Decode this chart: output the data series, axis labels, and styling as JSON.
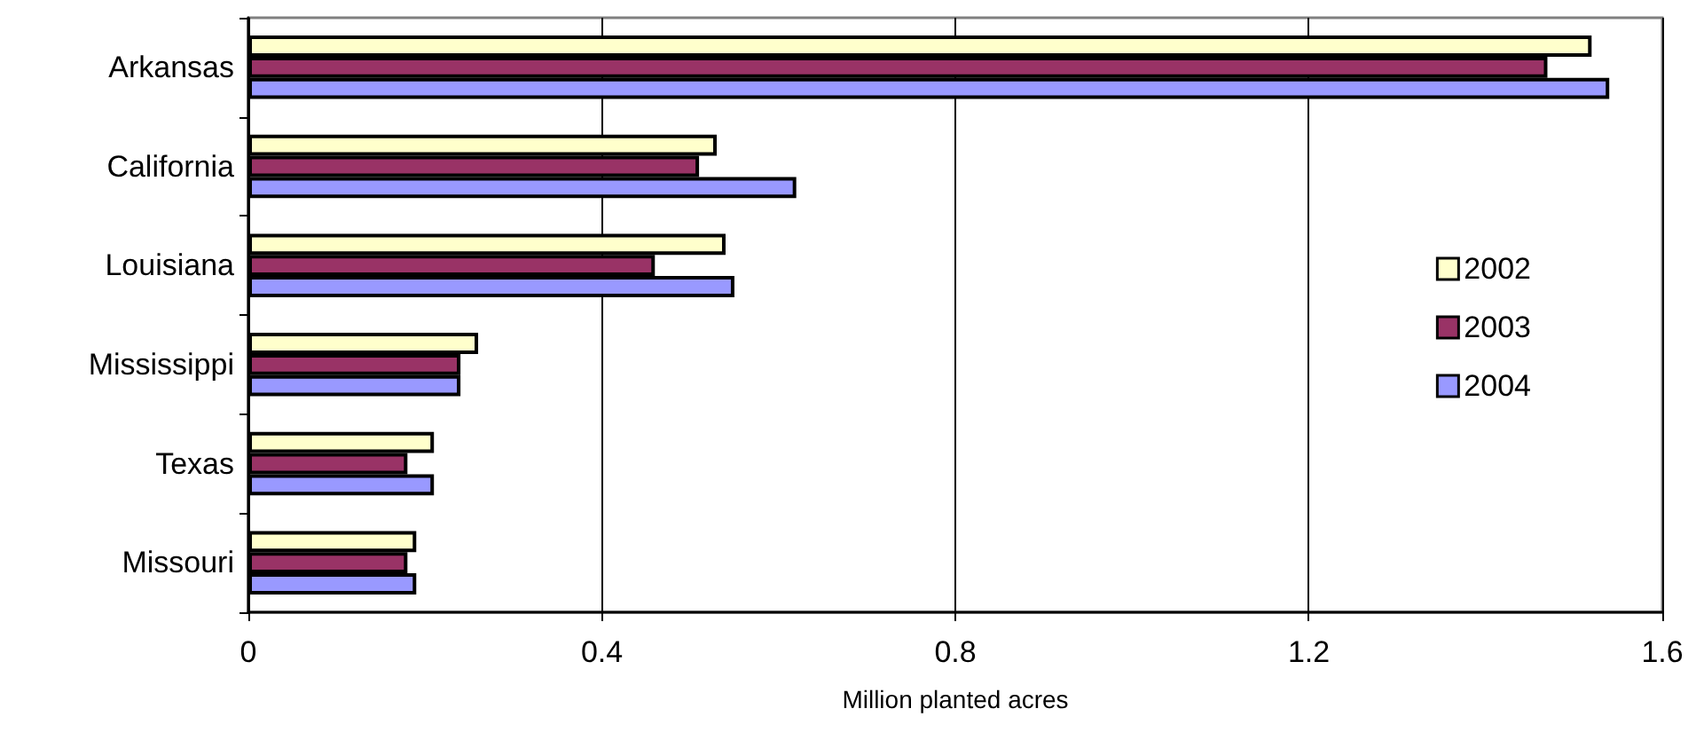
{
  "chart_data": {
    "type": "bar",
    "orientation": "horizontal",
    "xlabel": "Million planted acres",
    "categories": [
      "Arkansas",
      "California",
      "Louisiana",
      "Mississippi",
      "Texas",
      "Missouri"
    ],
    "series": [
      {
        "name": "2002",
        "color": "#ffffcc",
        "values": [
          1.52,
          0.53,
          0.54,
          0.26,
          0.21,
          0.19
        ]
      },
      {
        "name": "2003",
        "color": "#993366",
        "values": [
          1.47,
          0.51,
          0.46,
          0.24,
          0.18,
          0.18
        ]
      },
      {
        "name": "2004",
        "color": "#9999ff",
        "values": [
          1.54,
          0.62,
          0.55,
          0.24,
          0.21,
          0.19
        ]
      }
    ],
    "xlim": [
      0,
      1.6
    ],
    "xticks": [
      0,
      0.4,
      0.8,
      1.2,
      1.6
    ],
    "grid": "x",
    "legend": "right"
  }
}
